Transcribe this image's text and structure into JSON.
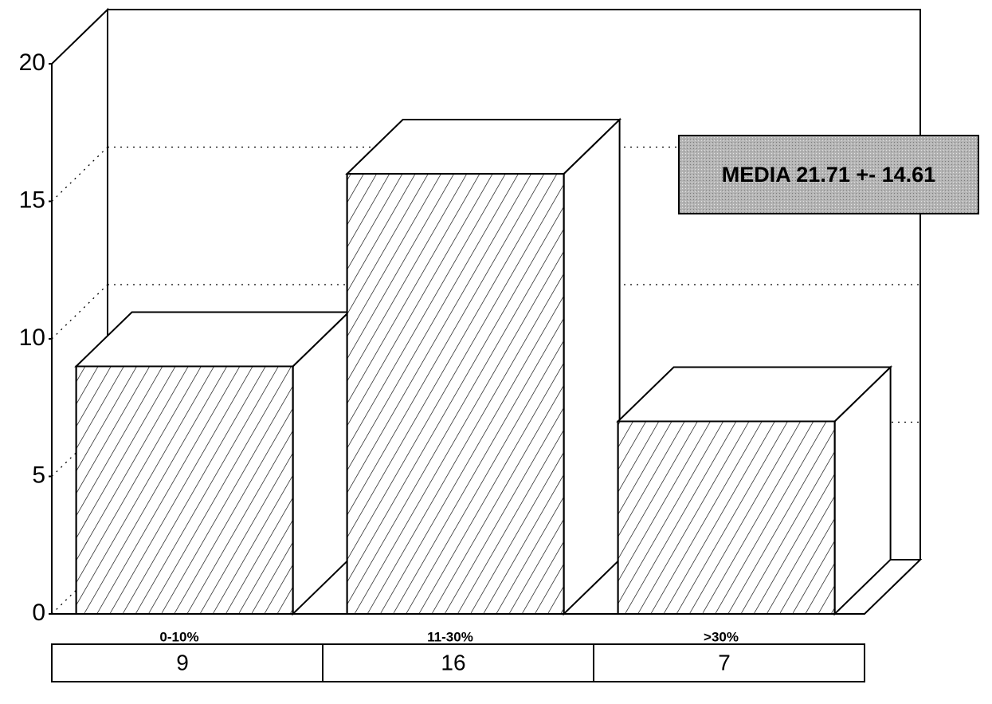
{
  "chart_data": {
    "type": "bar3d",
    "categories": [
      "0-10%",
      "11-30%",
      ">30%"
    ],
    "values": [
      9,
      16,
      7
    ],
    "ylim": [
      0,
      20
    ],
    "yticks": [
      0,
      5,
      10,
      15,
      20
    ],
    "grid": true,
    "annotations": [
      "MEDIA 21.71 +- 14.61"
    ]
  }
}
